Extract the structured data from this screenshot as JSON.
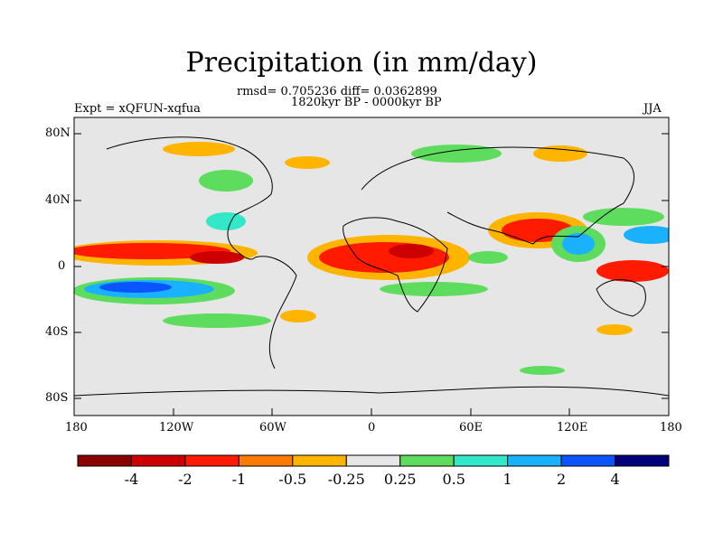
{
  "header": {
    "title": "Precipitation (in mm/day)",
    "stats": "rmsd= 0.705236 diff= 0.0362899",
    "period": "1820kyr BP - 0000kyr BP",
    "experiment": "Expt = xQFUN-xqfua",
    "season": "JJA"
  },
  "axes": {
    "lat_labels": [
      "80N",
      "40N",
      "0",
      "40S",
      "80S"
    ],
    "lon_labels": [
      "180",
      "120W",
      "60W",
      "0",
      "60E",
      "120E",
      "180"
    ]
  },
  "colorbar": {
    "labels": [
      "-4",
      "-2",
      "-1",
      "-0.5",
      "-0.25",
      "0.25",
      "0.5",
      "1",
      "2",
      "4"
    ],
    "colors": [
      "#8b0000",
      "#cc0000",
      "#ff1a00",
      "#ff7a00",
      "#ffb400",
      "#e6e6e6",
      "#5ddc5d",
      "#33e8c8",
      "#1ab2ff",
      "#0a55ff",
      "#00007a"
    ]
  }
}
